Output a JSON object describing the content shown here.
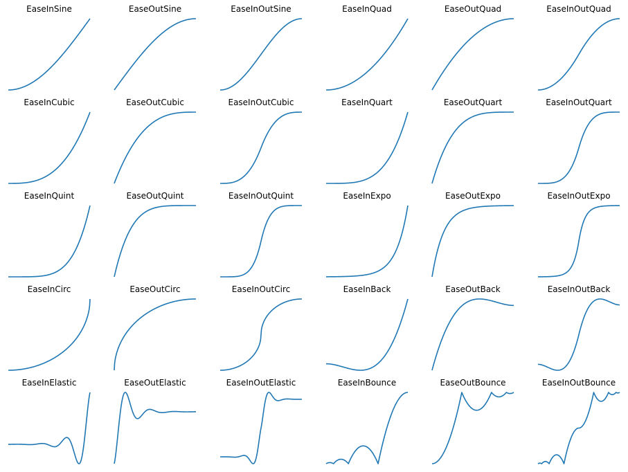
{
  "figure": {
    "line_color": "#1f77b4",
    "axes_visible": false,
    "rows": 5,
    "cols": 6
  },
  "chart_data": {
    "type": "line",
    "x_range": [
      0,
      1
    ],
    "panels": [
      {
        "title": "EaseInSine",
        "fn": "easeInSine"
      },
      {
        "title": "EaseOutSine",
        "fn": "easeOutSine"
      },
      {
        "title": "EaseInOutSine",
        "fn": "easeInOutSine"
      },
      {
        "title": "EaseInQuad",
        "fn": "easeInQuad"
      },
      {
        "title": "EaseOutQuad",
        "fn": "easeOutQuad"
      },
      {
        "title": "EaseInOutQuad",
        "fn": "easeInOutQuad"
      },
      {
        "title": "EaseInCubic",
        "fn": "easeInCubic"
      },
      {
        "title": "EaseOutCubic",
        "fn": "easeOutCubic"
      },
      {
        "title": "EaseInOutCubic",
        "fn": "easeInOutCubic"
      },
      {
        "title": "EaseInQuart",
        "fn": "easeInQuart"
      },
      {
        "title": "EaseOutQuart",
        "fn": "easeOutQuart"
      },
      {
        "title": "EaseInOutQuart",
        "fn": "easeInOutQuart"
      },
      {
        "title": "EaseInQuint",
        "fn": "easeInQuint"
      },
      {
        "title": "EaseOutQuint",
        "fn": "easeOutQuint"
      },
      {
        "title": "EaseInOutQuint",
        "fn": "easeInOutQuint"
      },
      {
        "title": "EaseInExpo",
        "fn": "easeInExpo"
      },
      {
        "title": "EaseOutExpo",
        "fn": "easeOutExpo"
      },
      {
        "title": "EaseInOutExpo",
        "fn": "easeInOutExpo"
      },
      {
        "title": "EaseInCirc",
        "fn": "easeInCirc"
      },
      {
        "title": "EaseOutCirc",
        "fn": "easeOutCirc"
      },
      {
        "title": "EaseInOutCirc",
        "fn": "easeInOutCirc"
      },
      {
        "title": "EaseInBack",
        "fn": "easeInBack"
      },
      {
        "title": "EaseOutBack",
        "fn": "easeOutBack"
      },
      {
        "title": "EaseInOutBack",
        "fn": "easeInOutBack"
      },
      {
        "title": "EaseInElastic",
        "fn": "easeInElastic"
      },
      {
        "title": "EaseOutElastic",
        "fn": "easeOutElastic"
      },
      {
        "title": "EaseInOutElastic",
        "fn": "easeInOutElastic"
      },
      {
        "title": "EaseInBounce",
        "fn": "easeInBounce"
      },
      {
        "title": "EaseOutBounce",
        "fn": "easeOutBounce"
      },
      {
        "title": "EaseInOutBounce",
        "fn": "easeInOutBounce"
      }
    ]
  }
}
